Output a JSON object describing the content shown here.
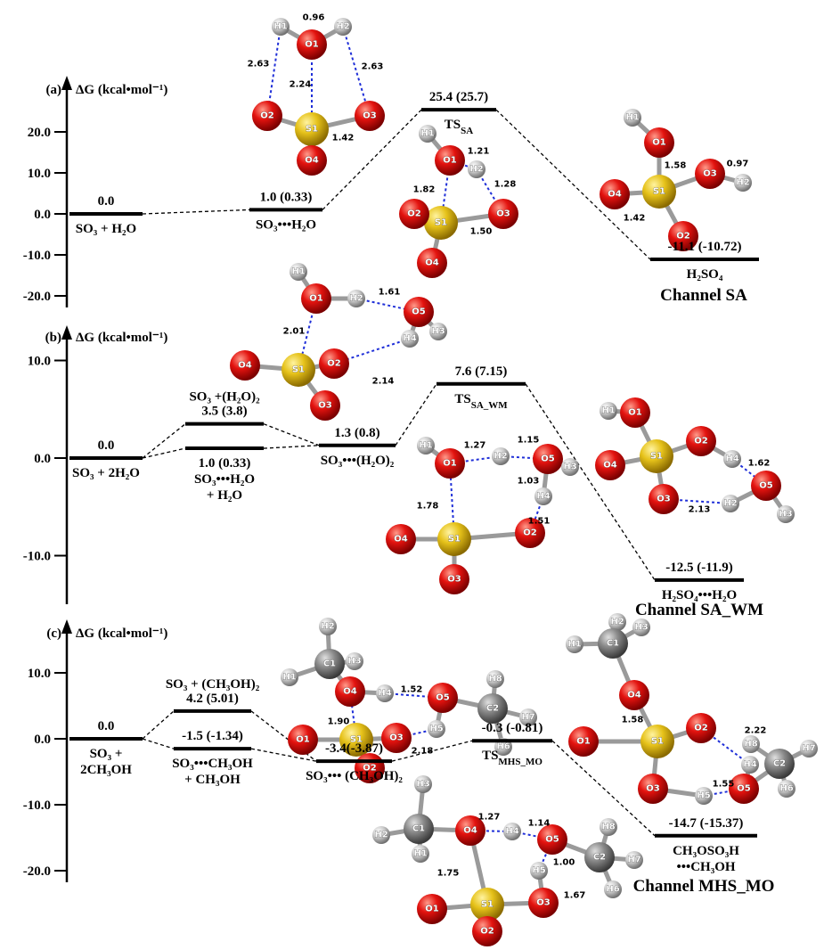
{
  "panels": [
    {
      "tag": "(a)",
      "axis_label": "ΔG (kcal•mol⁻¹)",
      "yticks": [
        {
          "value": 20,
          "label": "20.0"
        },
        {
          "value": 10,
          "label": "10.0"
        },
        {
          "value": 0,
          "label": "0.0"
        },
        {
          "value": -10,
          "label": "-10.0"
        },
        {
          "value": -20,
          "label": "-20.0"
        }
      ],
      "levels": [
        {
          "value": 0,
          "label": "0.0",
          "species": [
            "SO₃ + H₂O"
          ]
        },
        {
          "value": 1.0,
          "label": "1.0 (0.33)",
          "species": [
            "SO₃•••H₂O"
          ]
        },
        {
          "value": 25.4,
          "label": "25.4 (25.7)",
          "species": [
            "TS"
          ],
          "species_sub": "SA"
        },
        {
          "value": -11.1,
          "label": "-11.1 (-10.72)",
          "species": [
            "H₂SO₄"
          ]
        }
      ],
      "channel": "Channel SA",
      "molecules": [
        {
          "atoms": [
            "H1",
            "O1",
            "H2",
            "O2",
            "O3",
            "S1",
            "O4"
          ],
          "bond_labels": [
            "0.96",
            "2.63",
            "2.24",
            "2.63",
            "1.42"
          ]
        },
        {
          "atoms": [
            "H1",
            "O1",
            "H2",
            "O3",
            "S1",
            "O2",
            "O4"
          ],
          "bond_labels": [
            "1.21",
            "1.28",
            "1.82",
            "1.50"
          ]
        },
        {
          "atoms": [
            "H1",
            "O1",
            "S1",
            "O3",
            "H2",
            "O4",
            "O2"
          ],
          "bond_labels": [
            "1.58",
            "0.97",
            "1.42"
          ]
        }
      ]
    },
    {
      "tag": "(b)",
      "axis_label": "ΔG (kcal•mol⁻¹)",
      "yticks": [
        {
          "value": 10,
          "label": "10.0"
        },
        {
          "value": 0,
          "label": "0.0"
        },
        {
          "value": -10,
          "label": "-10.0"
        }
      ],
      "levels": [
        {
          "value": 0,
          "label": "0.0",
          "species": [
            "SO₃ + 2H₂O"
          ]
        },
        {
          "value": 3.5,
          "label": "3.5 (3.8)",
          "species": [
            "SO₃ +(H₂O)₂"
          ]
        },
        {
          "value": 1.0,
          "label": "1.0 (0.33)",
          "species": [
            "SO₃•••H₂O",
            "+ H₂O"
          ]
        },
        {
          "value": 1.3,
          "label": "1.3 (0.8)",
          "species": [
            "SO₃•••(H₂O)₂"
          ]
        },
        {
          "value": 7.6,
          "label": "7.6 (7.15)",
          "species": [
            "TS"
          ],
          "species_sub": "SA_WM"
        },
        {
          "value": -12.5,
          "label": "-12.5 (-11.9)",
          "species": [
            "H₂SO₄•••H₂O"
          ]
        }
      ],
      "channel": "Channel SA_WM",
      "molecules": [
        {
          "atoms": [
            "H1",
            "O1",
            "H2",
            "O5",
            "H4",
            "H3",
            "O2",
            "S1",
            "O4",
            "O3"
          ],
          "bond_labels": [
            "1.61",
            "2.01",
            "2.14"
          ]
        },
        {
          "atoms": [
            "H1",
            "O1",
            "H2",
            "O5",
            "H3",
            "H4",
            "O2",
            "S1",
            "O4",
            "O3"
          ],
          "bond_labels": [
            "1.27",
            "1.15",
            "1.03",
            "1.78",
            "1.51"
          ]
        },
        {
          "atoms": [
            "H1",
            "O1",
            "S1",
            "O2",
            "H4",
            "O5",
            "H3",
            "O4",
            "O3",
            "H2"
          ],
          "bond_labels": [
            "1.62",
            "2.13"
          ]
        }
      ]
    },
    {
      "tag": "(c)",
      "axis_label": "ΔG (kcal•mol⁻¹)",
      "yticks": [
        {
          "value": 10,
          "label": "10.0"
        },
        {
          "value": 0,
          "label": "0.0"
        },
        {
          "value": -10,
          "label": "-10.0"
        },
        {
          "value": -20,
          "label": "-20.0"
        }
      ],
      "levels": [
        {
          "value": 0,
          "label": "0.0",
          "species": [
            "SO₃ +",
            "2CH₃OH"
          ]
        },
        {
          "value": 4.2,
          "label": "4.2 (5.01)",
          "species": [
            "SO₃ + (CH₃OH)₂"
          ]
        },
        {
          "value": -1.5,
          "label": "-1.5 (-1.34)",
          "species": [
            "SO₃•••CH₃OH",
            "+ CH₃OH"
          ]
        },
        {
          "value": -3.4,
          "label": "-3.4(-3.87)",
          "species": [
            "SO₃••• (CH₃OH)₂"
          ]
        },
        {
          "value": -0.3,
          "label": "-0.3 (-0.81)",
          "species": [
            "TS"
          ],
          "species_sub": "MHS_MO"
        },
        {
          "value": -14.7,
          "label": "-14.7 (-15.37)",
          "species": [
            "CH₃OSO₃H",
            "•••CH₃OH"
          ]
        }
      ],
      "channel": "Channel MHS_MO",
      "molecules": [
        {
          "atoms": [
            "H2",
            "C1",
            "H3",
            "H1",
            "O4",
            "H4",
            "O5",
            "C2",
            "H8",
            "H7",
            "H6",
            "H5",
            "O3",
            "S1",
            "O1",
            "O2"
          ],
          "bond_labels": [
            "1.52",
            "1.90",
            "2.18"
          ]
        },
        {
          "atoms": [
            "H2",
            "H1",
            "C1",
            "H3",
            "O4",
            "S1",
            "O2",
            "O1",
            "O3",
            "H5",
            "O5",
            "H4",
            "C2",
            "H8",
            "H7",
            "H6"
          ],
          "bond_labels": [
            "1.58",
            "2.22",
            "1.55"
          ]
        },
        {
          "atoms": [
            "H3",
            "C1",
            "H2",
            "H1",
            "O4",
            "H4",
            "O5",
            "C2",
            "H8",
            "H7",
            "H6",
            "H5",
            "O3",
            "S1",
            "O1",
            "O2"
          ],
          "bond_labels": [
            "1.27",
            "1.14",
            "1.00",
            "1.75",
            "1.67"
          ]
        }
      ]
    }
  ]
}
